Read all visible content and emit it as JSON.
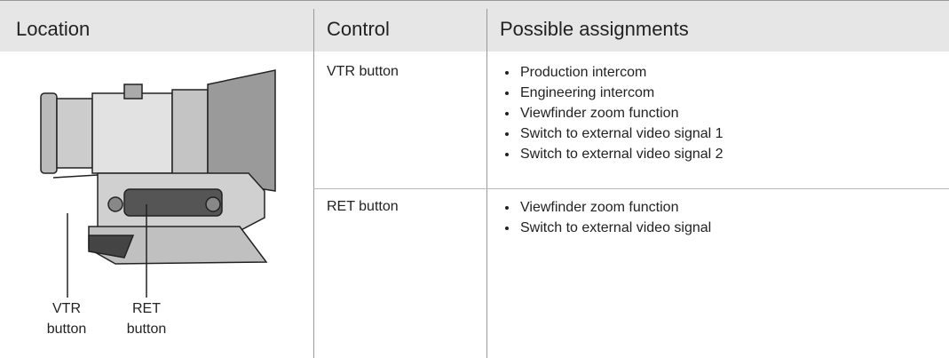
{
  "table": {
    "headers": [
      "Location",
      "Control",
      "Possible assignments"
    ],
    "rows": [
      {
        "control": "VTR button",
        "assignments": [
          "Production intercom",
          "Engineering intercom",
          "Viewfinder zoom function",
          "Switch to external video signal 1",
          "Switch to external video signal 2"
        ]
      },
      {
        "control": "RET button",
        "assignments": [
          "Viewfinder zoom function",
          "Switch to external video signal"
        ]
      }
    ]
  },
  "figure": {
    "callouts": [
      "VTR button",
      "RET button"
    ]
  }
}
